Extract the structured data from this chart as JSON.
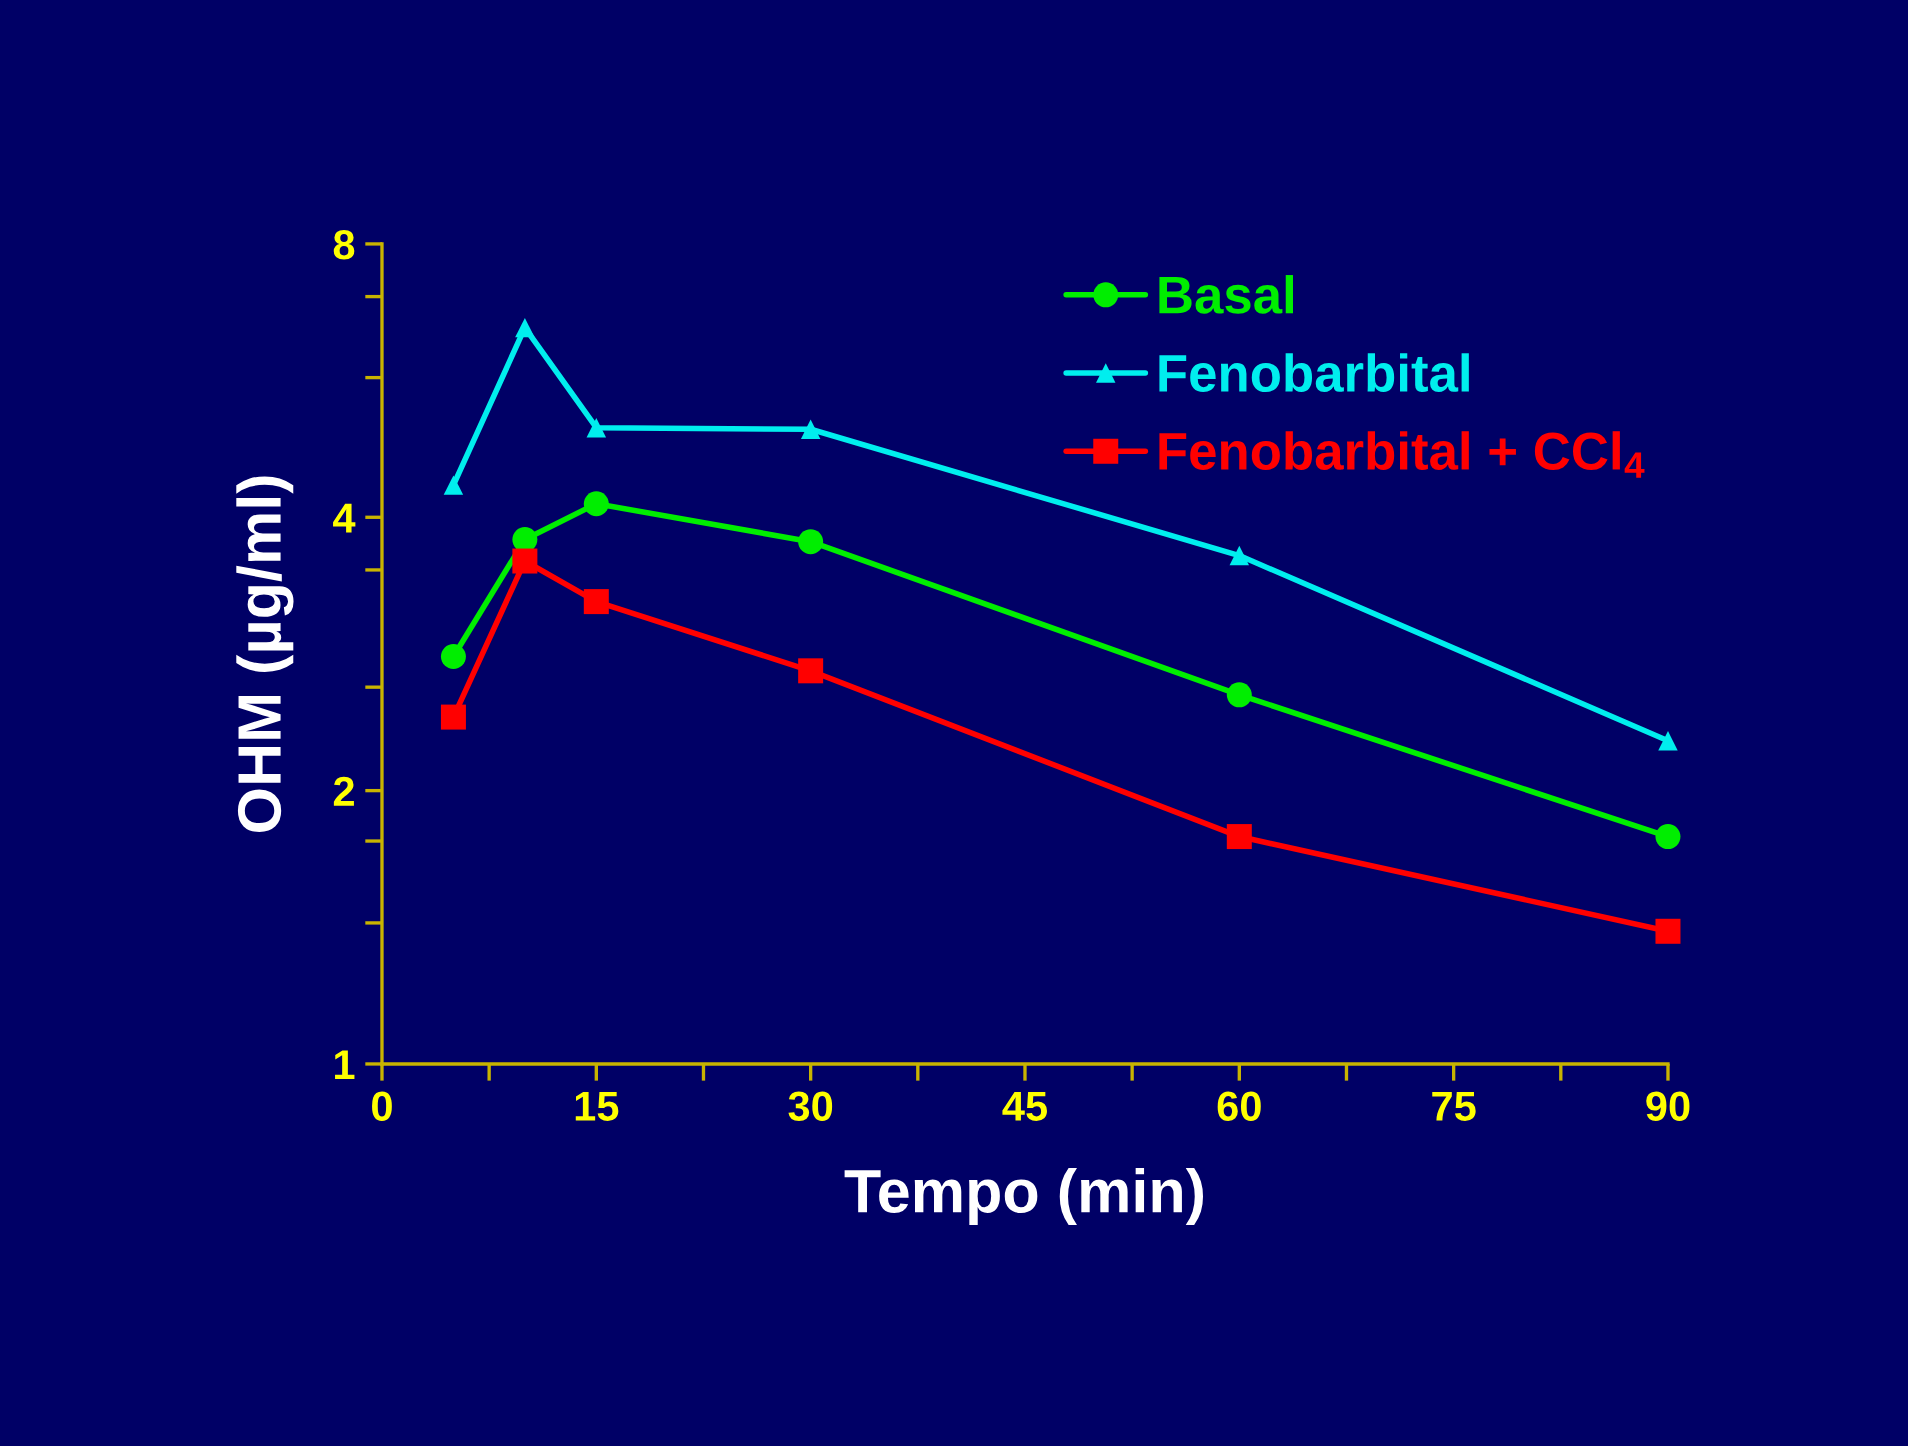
{
  "chart_data": {
    "type": "line",
    "xlabel": "Tempo (min)",
    "ylabel": "OHM (µg/ml)",
    "log": "y",
    "x": [
      5,
      10,
      15,
      30,
      60,
      90
    ],
    "series": [
      {
        "name": "Basal",
        "color": "#00ee00",
        "marker": "circle",
        "values": [
          2.81,
          3.78,
          4.14,
          3.76,
          2.55,
          1.78
        ]
      },
      {
        "name": "Fenobarbital",
        "color": "#00eeee",
        "marker": "triangle",
        "values": [
          4.34,
          6.47,
          5.02,
          5.0,
          3.63,
          2.27
        ]
      },
      {
        "name": "Fenobarbital + CCl$_{4}$",
        "color": "#ff0000",
        "marker": "square",
        "values": [
          2.41,
          3.58,
          3.23,
          2.71,
          1.78,
          1.4
        ]
      }
    ],
    "xlim": [
      0,
      90
    ],
    "xticks": [
      0,
      {
        "value": 7.5,
        "label": null
      },
      15,
      {
        "value": 22.5,
        "label": null
      },
      30,
      {
        "value": 37.5,
        "label": null
      },
      45,
      {
        "value": 52.5,
        "label": null
      },
      60,
      {
        "value": 67.5,
        "label": null
      },
      75,
      {
        "value": 82.5,
        "label": null
      },
      90
    ],
    "ylim": [
      1,
      8
    ],
    "yticks": [
      1,
      {
        "value": 1.43,
        "label": null
      },
      {
        "value": 1.76,
        "label": null
      },
      2,
      {
        "value": 2.6,
        "label": null
      },
      {
        "value": 3.5,
        "label": null
      },
      4,
      {
        "value": 5.7,
        "label": null
      },
      {
        "value": 7.0,
        "label": null
      },
      8
    ],
    "grid": false,
    "legend": "top right",
    "line_style": "solid"
  }
}
